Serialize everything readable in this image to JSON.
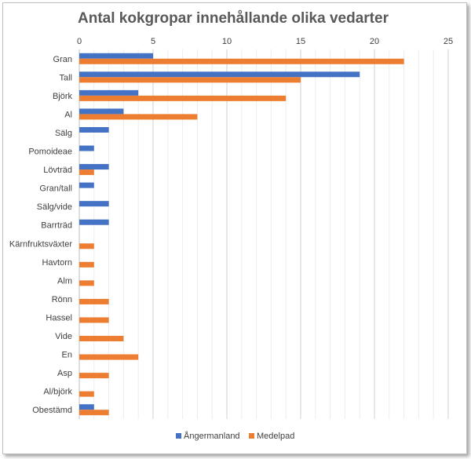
{
  "chart_data": {
    "type": "bar",
    "orientation": "horizontal",
    "title": "Antal kokgropar innehållande olika vedarter",
    "xlabel": "",
    "ylabel": "",
    "xlim": [
      0,
      25
    ],
    "xticks": [
      0,
      5,
      10,
      15,
      20,
      25
    ],
    "x_axis_position": "top",
    "grid": true,
    "legend_position": "bottom",
    "categories": [
      "Gran",
      "Tall",
      "Björk",
      "Al",
      "Sälg",
      "Pomoideae",
      "Lövträd",
      "Gran/tall",
      "Sälg/vide",
      "Barrträd",
      "Kärnfruktsväxter",
      "Havtorn",
      "Alm",
      "Rönn",
      "Hassel",
      "Vide",
      "En",
      "Asp",
      "Al/björk",
      "Obestämd"
    ],
    "series": [
      {
        "name": "Ångermanland",
        "color": "#4472c4",
        "values": [
          5,
          19,
          4,
          3,
          2,
          1,
          2,
          1,
          2,
          2,
          0,
          0,
          0,
          0,
          0,
          0,
          0,
          0,
          0,
          1
        ]
      },
      {
        "name": "Medelpad",
        "color": "#ed7d31",
        "values": [
          22,
          15,
          14,
          8,
          0,
          0,
          1,
          0,
          0,
          0,
          1,
          1,
          1,
          2,
          2,
          3,
          4,
          2,
          1,
          2
        ]
      }
    ]
  }
}
